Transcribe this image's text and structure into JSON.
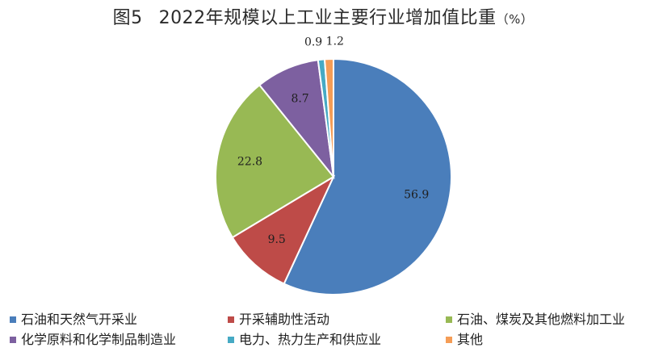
{
  "title": {
    "figure_number": "图5",
    "text": "2022年规模以上工业主要行业增加值比重",
    "unit": "（%）"
  },
  "chart_data": {
    "type": "pie",
    "title": "2022年规模以上工业主要行业增加值比重（%）",
    "start_angle_deg": 0,
    "direction": "clockwise",
    "slices": [
      {
        "label": "石油和天然气开采业",
        "value": 56.9,
        "display": "56.9",
        "color": "#4a7ebb"
      },
      {
        "label": "开采辅助性活动",
        "value": 9.5,
        "display": "9.5",
        "color": "#be4b48"
      },
      {
        "label": "石油、煤炭及其他燃料加工业",
        "value": 22.8,
        "display": "22.8",
        "color": "#98b954"
      },
      {
        "label": "化学原料和化学制品制造业",
        "value": 8.7,
        "display": "8.7",
        "color": "#7d60a0"
      },
      {
        "label": "电力、热力生产和供应业",
        "value": 0.9,
        "display": "0.9",
        "color": "#46aac4"
      },
      {
        "label": "其他",
        "value": 1.2,
        "display": "1.2",
        "color": "#f59d56"
      }
    ],
    "legend_position": "bottom"
  }
}
